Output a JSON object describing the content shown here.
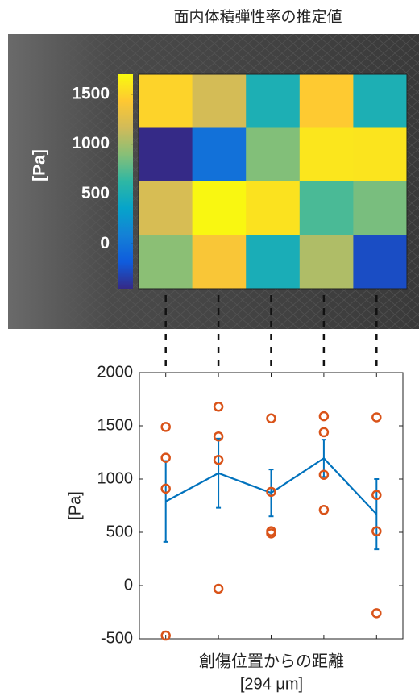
{
  "chart_data": [
    {
      "type": "heatmap",
      "title": "面内体積弾性率の推定値",
      "values": [
        [
          1490,
          1180,
          510,
          1440,
          510
        ],
        [
          -470,
          -30,
          880,
          1590,
          1580
        ],
        [
          1200,
          1680,
          1570,
          710,
          850
        ],
        [
          910,
          1400,
          490,
          1040,
          -260
        ]
      ],
      "clim": [
        -450,
        1700
      ],
      "colorbar_ticks": [
        0,
        500,
        1000,
        1500
      ],
      "colorbar_label": "[Pa]",
      "colormap": [
        "#352a87",
        "#0f5cdd",
        "#1481d6",
        "#06a4ca",
        "#2eb7a4",
        "#87bf77",
        "#d1bb59",
        "#fec832",
        "#f9fb0e"
      ]
    },
    {
      "type": "line",
      "ylabel": "[Pa]",
      "xlabel": [
        "創傷位置からの距離",
        "[294 μm]"
      ],
      "x": [
        1,
        2,
        3,
        4,
        5
      ],
      "xlim": [
        0.5,
        5.5
      ],
      "ylim": [
        -500,
        2000
      ],
      "yticks": [
        -500,
        0,
        500,
        1000,
        1500,
        2000
      ],
      "series": [
        {
          "color": "#0072bd",
          "values": [
            790,
            1055,
            870,
            1195,
            670
          ],
          "errors": [
            380,
            325,
            220,
            175,
            330
          ]
        }
      ],
      "points_color": "#d95319",
      "points": [
        [
          1490,
          1200,
          910,
          -470
        ],
        [
          1680,
          1400,
          1180,
          -30
        ],
        [
          1570,
          880,
          510,
          490
        ],
        [
          1590,
          1440,
          1040,
          710
        ],
        [
          1580,
          850,
          510,
          -260
        ]
      ]
    }
  ]
}
